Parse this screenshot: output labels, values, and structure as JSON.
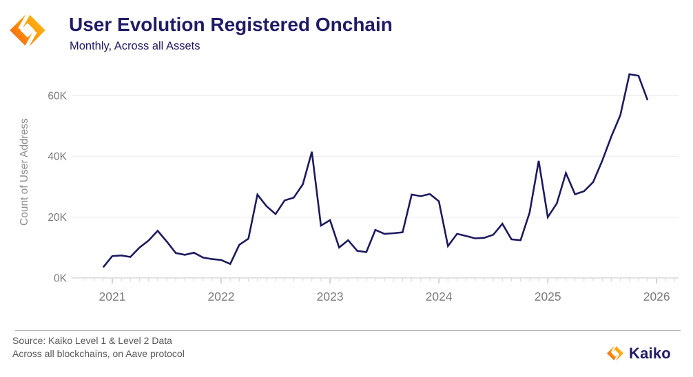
{
  "header": {
    "title": "User Evolution Registered Onchain",
    "subtitle": "Monthly, Across all Assets"
  },
  "footer": {
    "source_line1": "Source: Kaiko Level 1 & Level 2 Data",
    "source_line2": "Across all blockchains, on Aave protocol"
  },
  "brand": {
    "wordmark": "Kaiko",
    "logo_icon": "kaiko-diamond-mark",
    "navy": "#1f1b66",
    "orange_dark": "#f4601e",
    "orange_mid": "#ff9800",
    "orange_light": "#ffc62c"
  },
  "chart_data": {
    "type": "line",
    "title": "User Evolution Registered Onchain",
    "subtitle": "Monthly, Across all Assets",
    "xlabel": "",
    "ylabel": "Count of User Address",
    "unit": "thousands of user addresses",
    "grid": "horizontal",
    "legend": "none",
    "line_color": "#1c1a5e",
    "axis_text_color": "#7b7b7b",
    "ylim_thousands": [
      0,
      70
    ],
    "y_tick_values": [
      0,
      20,
      40,
      60
    ],
    "y_tick_labels": [
      "0K",
      "20K",
      "40K",
      "60K"
    ],
    "x_tick_labels": [
      "2021",
      "2022",
      "2023",
      "2024",
      "2025",
      "2026"
    ],
    "series": [
      {
        "name": "Count of User Address",
        "x": [
          "2020-12",
          "2021-01",
          "2021-02",
          "2021-03",
          "2021-04",
          "2021-05",
          "2021-06",
          "2021-07",
          "2021-08",
          "2021-09",
          "2021-10",
          "2021-11",
          "2021-12",
          "2022-01",
          "2022-02",
          "2022-03",
          "2022-04",
          "2022-05",
          "2022-06",
          "2022-07",
          "2022-08",
          "2022-09",
          "2022-10",
          "2022-11",
          "2022-12",
          "2023-01",
          "2023-02",
          "2023-03",
          "2023-04",
          "2023-05",
          "2023-06",
          "2023-07",
          "2023-08",
          "2023-09",
          "2023-10",
          "2023-11",
          "2023-12",
          "2024-01",
          "2024-02",
          "2024-03",
          "2024-04",
          "2024-05",
          "2024-06",
          "2024-07",
          "2024-08",
          "2024-09",
          "2024-10",
          "2024-11",
          "2024-12",
          "2025-01",
          "2025-02",
          "2025-03",
          "2025-04",
          "2025-05",
          "2025-06",
          "2025-07",
          "2025-08",
          "2025-09",
          "2025-10",
          "2025-11",
          "2025-12"
        ],
        "values_thousands": [
          3.5,
          7.2,
          7.4,
          6.9,
          10.0,
          12.3,
          15.5,
          12.0,
          8.2,
          7.6,
          8.3,
          6.7,
          6.2,
          5.9,
          4.6,
          10.9,
          12.9,
          27.4,
          23.6,
          21.0,
          25.5,
          26.4,
          30.8,
          41.5,
          17.2,
          19.0,
          10.0,
          12.4,
          8.9,
          8.5,
          15.8,
          14.5,
          14.7,
          15.0,
          27.4,
          26.9,
          27.6,
          25.2,
          10.5,
          14.5,
          13.8,
          13.0,
          13.2,
          14.2,
          17.8,
          12.7,
          12.4,
          21.5,
          38.5,
          20.0,
          24.5,
          34.5,
          27.5,
          28.5,
          31.5,
          38.5,
          46.5,
          53.5,
          67.0,
          66.5,
          58.5
        ]
      }
    ]
  }
}
